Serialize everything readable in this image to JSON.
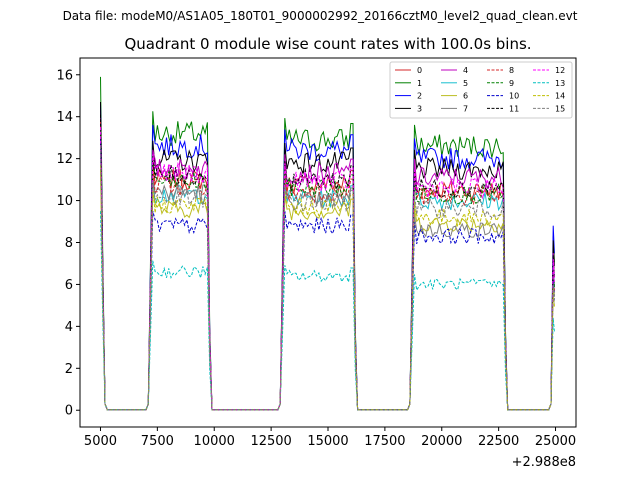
{
  "suptitle": "Data file: modeM0/AS1A05_180T01_9000002992_20166cztM0_level2_quad_clean.evt",
  "chart_data": {
    "type": "line",
    "title": "Quadrant 0 module wise count rates with 100.0s bins.",
    "xlabel": "",
    "ylabel": "",
    "x_offset_label": "+2.988e8",
    "xlim": [
      4100,
      25900
    ],
    "ylim": [
      -0.8,
      16.8
    ],
    "xticks": [
      5000,
      7500,
      10000,
      12500,
      15000,
      17500,
      20000,
      22500,
      25000
    ],
    "xtick_labels": [
      "5000",
      "7500",
      "10000",
      "12500",
      "15000",
      "17500",
      "20000",
      "22500",
      "25000"
    ],
    "yticks": [
      0,
      2,
      4,
      6,
      8,
      10,
      12,
      14,
      16
    ],
    "ytick_labels": [
      "0",
      "2",
      "4",
      "6",
      "8",
      "10",
      "12",
      "14",
      "16"
    ],
    "grid": false,
    "legend_position": "top-right",
    "legend_columns": 4,
    "segments": [
      [
        7300,
        9700
      ],
      [
        13100,
        16100
      ],
      [
        18800,
        22700
      ]
    ],
    "ramps_up": [
      [
        7100,
        7300
      ],
      [
        12900,
        13100
      ],
      [
        18700,
        18800
      ],
      [
        24800,
        24900
      ]
    ],
    "series": [
      {
        "name": "0",
        "color": "#d62728",
        "dash": "solid",
        "first": 14.3,
        "levels": [
          11.0,
          10.8,
          10.5
        ],
        "end": 7.0
      },
      {
        "name": "1",
        "color": "#008000",
        "dash": "solid",
        "first": 15.9,
        "levels": [
          13.2,
          12.9,
          12.6
        ],
        "end": 8.3
      },
      {
        "name": "2",
        "color": "#0000ff",
        "dash": "solid",
        "first": 14.6,
        "levels": [
          12.6,
          12.4,
          12.0
        ],
        "end": 8.8
      },
      {
        "name": "3",
        "color": "#000000",
        "dash": "solid",
        "first": 14.7,
        "levels": [
          11.9,
          11.8,
          11.5
        ],
        "end": 8.1
      },
      {
        "name": "4",
        "color": "#bf00bf",
        "dash": "solid",
        "first": 13.9,
        "levels": [
          11.5,
          11.3,
          11.1
        ],
        "end": 7.5
      },
      {
        "name": "5",
        "color": "#17becf",
        "dash": "solid",
        "first": 13.6,
        "levels": [
          10.3,
          10.1,
          10.0
        ],
        "end": 7.0
      },
      {
        "name": "6",
        "color": "#bcbd22",
        "dash": "solid",
        "first": 11.5,
        "levels": [
          9.6,
          9.5,
          8.9
        ],
        "end": 6.4
      },
      {
        "name": "7",
        "color": "#7f7f7f",
        "dash": "solid",
        "first": 12.4,
        "levels": [
          10.4,
          10.0,
          8.6
        ],
        "end": 6.6
      },
      {
        "name": "8",
        "color": "#d62728",
        "dash": "dashed",
        "first": 13.8,
        "levels": [
          10.7,
          10.4,
          10.2
        ],
        "end": 6.7
      },
      {
        "name": "9",
        "color": "#008000",
        "dash": "dashed",
        "first": 13.4,
        "levels": [
          10.9,
          10.6,
          10.3
        ],
        "end": 6.9
      },
      {
        "name": "10",
        "color": "#0000cc",
        "dash": "dashed",
        "first": 13.0,
        "levels": [
          8.8,
          8.8,
          8.3
        ],
        "end": 6.2
      },
      {
        "name": "11",
        "color": "#000000",
        "dash": "dashed",
        "first": 14.1,
        "levels": [
          11.2,
          11.0,
          10.6
        ],
        "end": 7.4
      },
      {
        "name": "12",
        "color": "#ff00ff",
        "dash": "dashed",
        "first": 13.5,
        "levels": [
          11.3,
          10.9,
          10.6
        ],
        "end": 7.2
      },
      {
        "name": "13",
        "color": "#00bfbf",
        "dash": "dashed",
        "first": 9.5,
        "levels": [
          6.6,
          6.4,
          6.0
        ],
        "end": 4.4
      },
      {
        "name": "14",
        "color": "#bfbf00",
        "dash": "dashed",
        "first": 11.7,
        "levels": [
          9.8,
          9.7,
          9.2
        ],
        "end": 5.8
      },
      {
        "name": "15",
        "color": "#7f7f7f",
        "dash": "dashed",
        "first": 12.6,
        "levels": [
          10.1,
          9.9,
          9.6
        ],
        "end": 6.0
      }
    ]
  }
}
